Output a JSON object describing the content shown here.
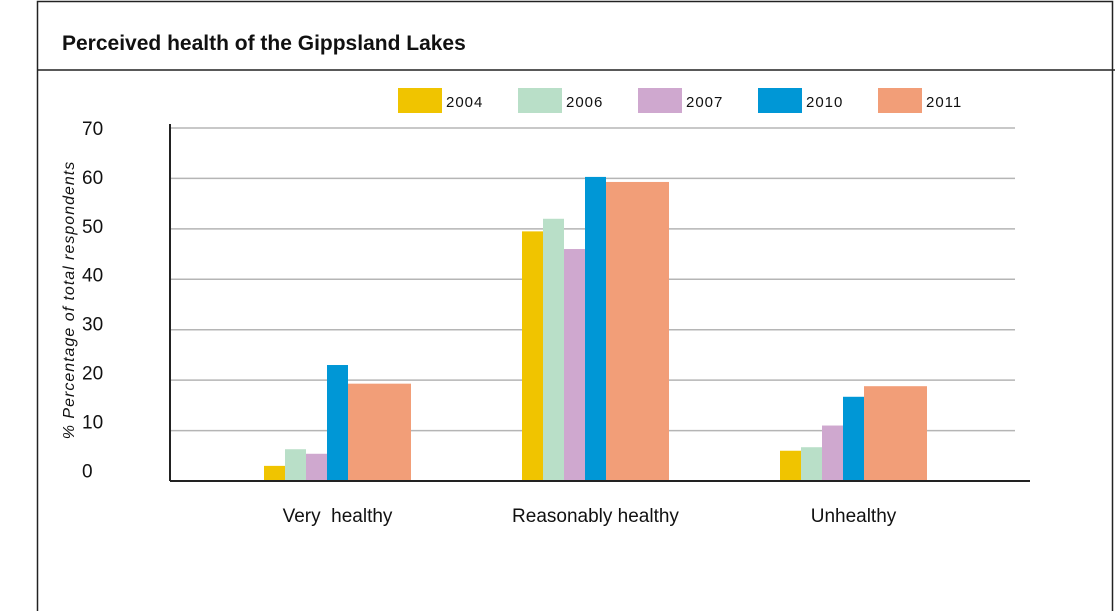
{
  "chart_data": {
    "type": "bar",
    "title": "Perceived health of the Gippsland Lakes",
    "y_label": "% Percentage of total respondents",
    "categories": [
      "Very  healthy",
      "Reasonably healthy",
      "Unhealthy"
    ],
    "series": [
      {
        "name": "2004",
        "color": "#f0c400",
        "values": [
          3,
          49.5,
          6
        ]
      },
      {
        "name": "2006",
        "color": "#b9dfc8",
        "values": [
          6.3,
          52,
          6.7
        ]
      },
      {
        "name": "2007",
        "color": "#cfa8cf",
        "values": [
          5.4,
          46,
          11
        ]
      },
      {
        "name": "2010",
        "color": "#0097d6",
        "values": [
          23,
          60.3,
          16.7
        ]
      },
      {
        "name": "2011",
        "color": "#f29e78",
        "values": [
          19.3,
          59.3,
          18.8
        ]
      }
    ],
    "ylim": [
      0,
      70
    ],
    "yticks": [
      0,
      10,
      20,
      30,
      40,
      50,
      60,
      70
    ],
    "grid": true,
    "legend": "top"
  }
}
